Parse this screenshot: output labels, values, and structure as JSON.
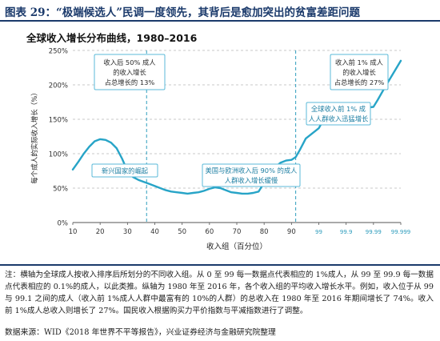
{
  "header": {
    "title": "图表 29：“极端候选人”民调一度领先，其背后是愈加突出的贫富差距问题"
  },
  "chart_data": {
    "type": "line",
    "title": "全球收入增长分布曲线，1980–2016",
    "xlabel": "收入组（百分位）",
    "ylabel": "每个成人的实际收入增长（%）",
    "ylim": [
      0,
      250
    ],
    "y_ticks": [
      "0%",
      "50%",
      "100%",
      "150%",
      "200%",
      "250%"
    ],
    "x_ticks": [
      "10",
      "20",
      "30",
      "40",
      "50",
      "60",
      "70",
      "80",
      "90",
      "99",
      "99.9",
      "99.99",
      "99.999"
    ],
    "grid": true,
    "line_color": "#27a4c7",
    "series": [
      {
        "x": [
          10,
          12,
          14,
          16,
          18,
          20,
          22,
          24,
          26,
          28,
          30,
          32,
          34,
          36,
          38,
          40,
          42,
          44,
          46,
          48,
          50,
          52,
          54,
          56,
          58,
          60,
          62,
          64,
          66,
          68,
          70,
          72,
          74,
          76,
          78,
          80,
          82,
          84,
          86,
          88,
          90,
          93,
          95,
          97,
          99,
          99.3,
          99.6,
          99.9,
          99.93,
          99.96,
          99.99,
          99.993,
          99.996,
          99.999
        ],
        "y": [
          77,
          88,
          100,
          110,
          118,
          121,
          120,
          116,
          108,
          93,
          75,
          66,
          62,
          59,
          56,
          53,
          50,
          47,
          45,
          44,
          43,
          42,
          43,
          44,
          46,
          49,
          51,
          50,
          47,
          44,
          43,
          42,
          42,
          43,
          45,
          58,
          75,
          80,
          87,
          90,
          91,
          95,
          105,
          122,
          137,
          148,
          155,
          160,
          162,
          165,
          168,
          178,
          195,
          235
        ]
      }
    ],
    "annotations": [
      {
        "text": "新兴国家的崛起",
        "lines": [
          "新兴国家的崛起"
        ]
      },
      {
        "text": "收入后50%成人的收入增长占总增长的13%",
        "lines": [
          "收入后 50% 成人",
          "的收入增长",
          "占总增长的 13%"
        ]
      },
      {
        "text": "美国与欧洲收入后90%的成人人群收入增长缓慢",
        "lines": [
          "美国与欧洲收入后 90% 的成人",
          "人群收入增长缓慢"
        ]
      },
      {
        "text": "收入前1%成人的收入增长占总增长的27%",
        "lines": [
          "收入前 1% 成人",
          "的收入增长",
          "占总增长的 27%"
        ]
      },
      {
        "text": "全球收入前1%成人人群收入迅猛增长",
        "lines": [
          "全球收入前 1% 成",
          "人人群收入迅猛增长"
        ]
      }
    ]
  },
  "note": "注：横轴为全球成人按收入排序后所划分的不同收入组。从 0 至 99 每一数据点代表相应的 1%成人，从 99 至 99.9 每一数据点代表相应的 0.1%的成人，以此类推。纵轴为 1980 年至 2016 年，各个收入组的平均收入增长水平。例如，收入位于从 99 与 99.1 之间的成人（收入前 1%成人人群中最富有的 10%的人群）的总收入在 1980 年至 2016 年期间增长了 74%。收入前 1%成人总收入则增长了 27%。国民收入根据购买力平价指数与平减指数进行了调整。",
  "source": "数据来源：WID《2018 年世界不平等报告》，兴业证券经济与金融研究院整理"
}
